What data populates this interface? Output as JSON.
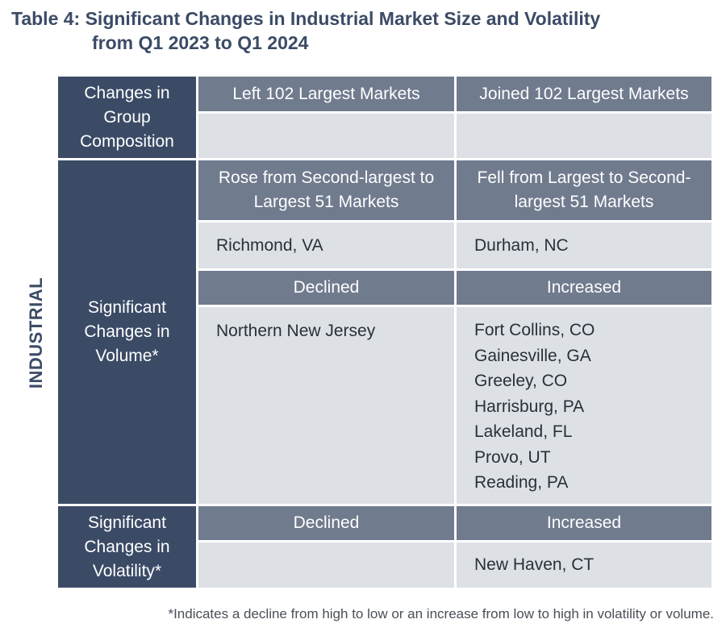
{
  "title": {
    "line1": "Table 4: Significant Changes in Industrial Market Size and Volatility",
    "line2": "from Q1 2023 to Q1 2024"
  },
  "side_label": "INDUSTRIAL",
  "sections": {
    "composition": {
      "row_header": "Changes in Group Composition",
      "left_header": "Left 102 Largest Markets",
      "right_header": "Joined 102 Largest Markets",
      "left_items": [],
      "right_items": []
    },
    "volume": {
      "row_header": "Significant Changes in Volume*",
      "rank_left_header": "Rose from Second-largest to Largest 51 Markets",
      "rank_right_header": "Fell from Largest to Second-largest 51 Markets",
      "rank_left_items": [
        "Richmond, VA"
      ],
      "rank_right_items": [
        "Durham, NC"
      ],
      "left_header": "Declined",
      "right_header": "Increased",
      "left_items": [
        "Northern New Jersey"
      ],
      "right_items": [
        "Fort Collins, CO",
        "Gainesville, GA",
        "Greeley, CO",
        "Harrisburg, PA",
        "Lakeland, FL",
        "Provo, UT",
        "Reading, PA"
      ]
    },
    "volatility": {
      "row_header": "Significant Changes in Volatility*",
      "left_header": "Declined",
      "right_header": "Increased",
      "left_items": [],
      "right_items": [
        "New Haven, CT"
      ]
    }
  },
  "footnote": "*Indicates a decline from high to low or an increase from low to high in volatility or volume.",
  "colors": {
    "row_header_bg": "#3b4b66",
    "column_header_bg": "#707b8e",
    "cell_bg": "#dde1e6",
    "title_text": "#3b4b66"
  }
}
